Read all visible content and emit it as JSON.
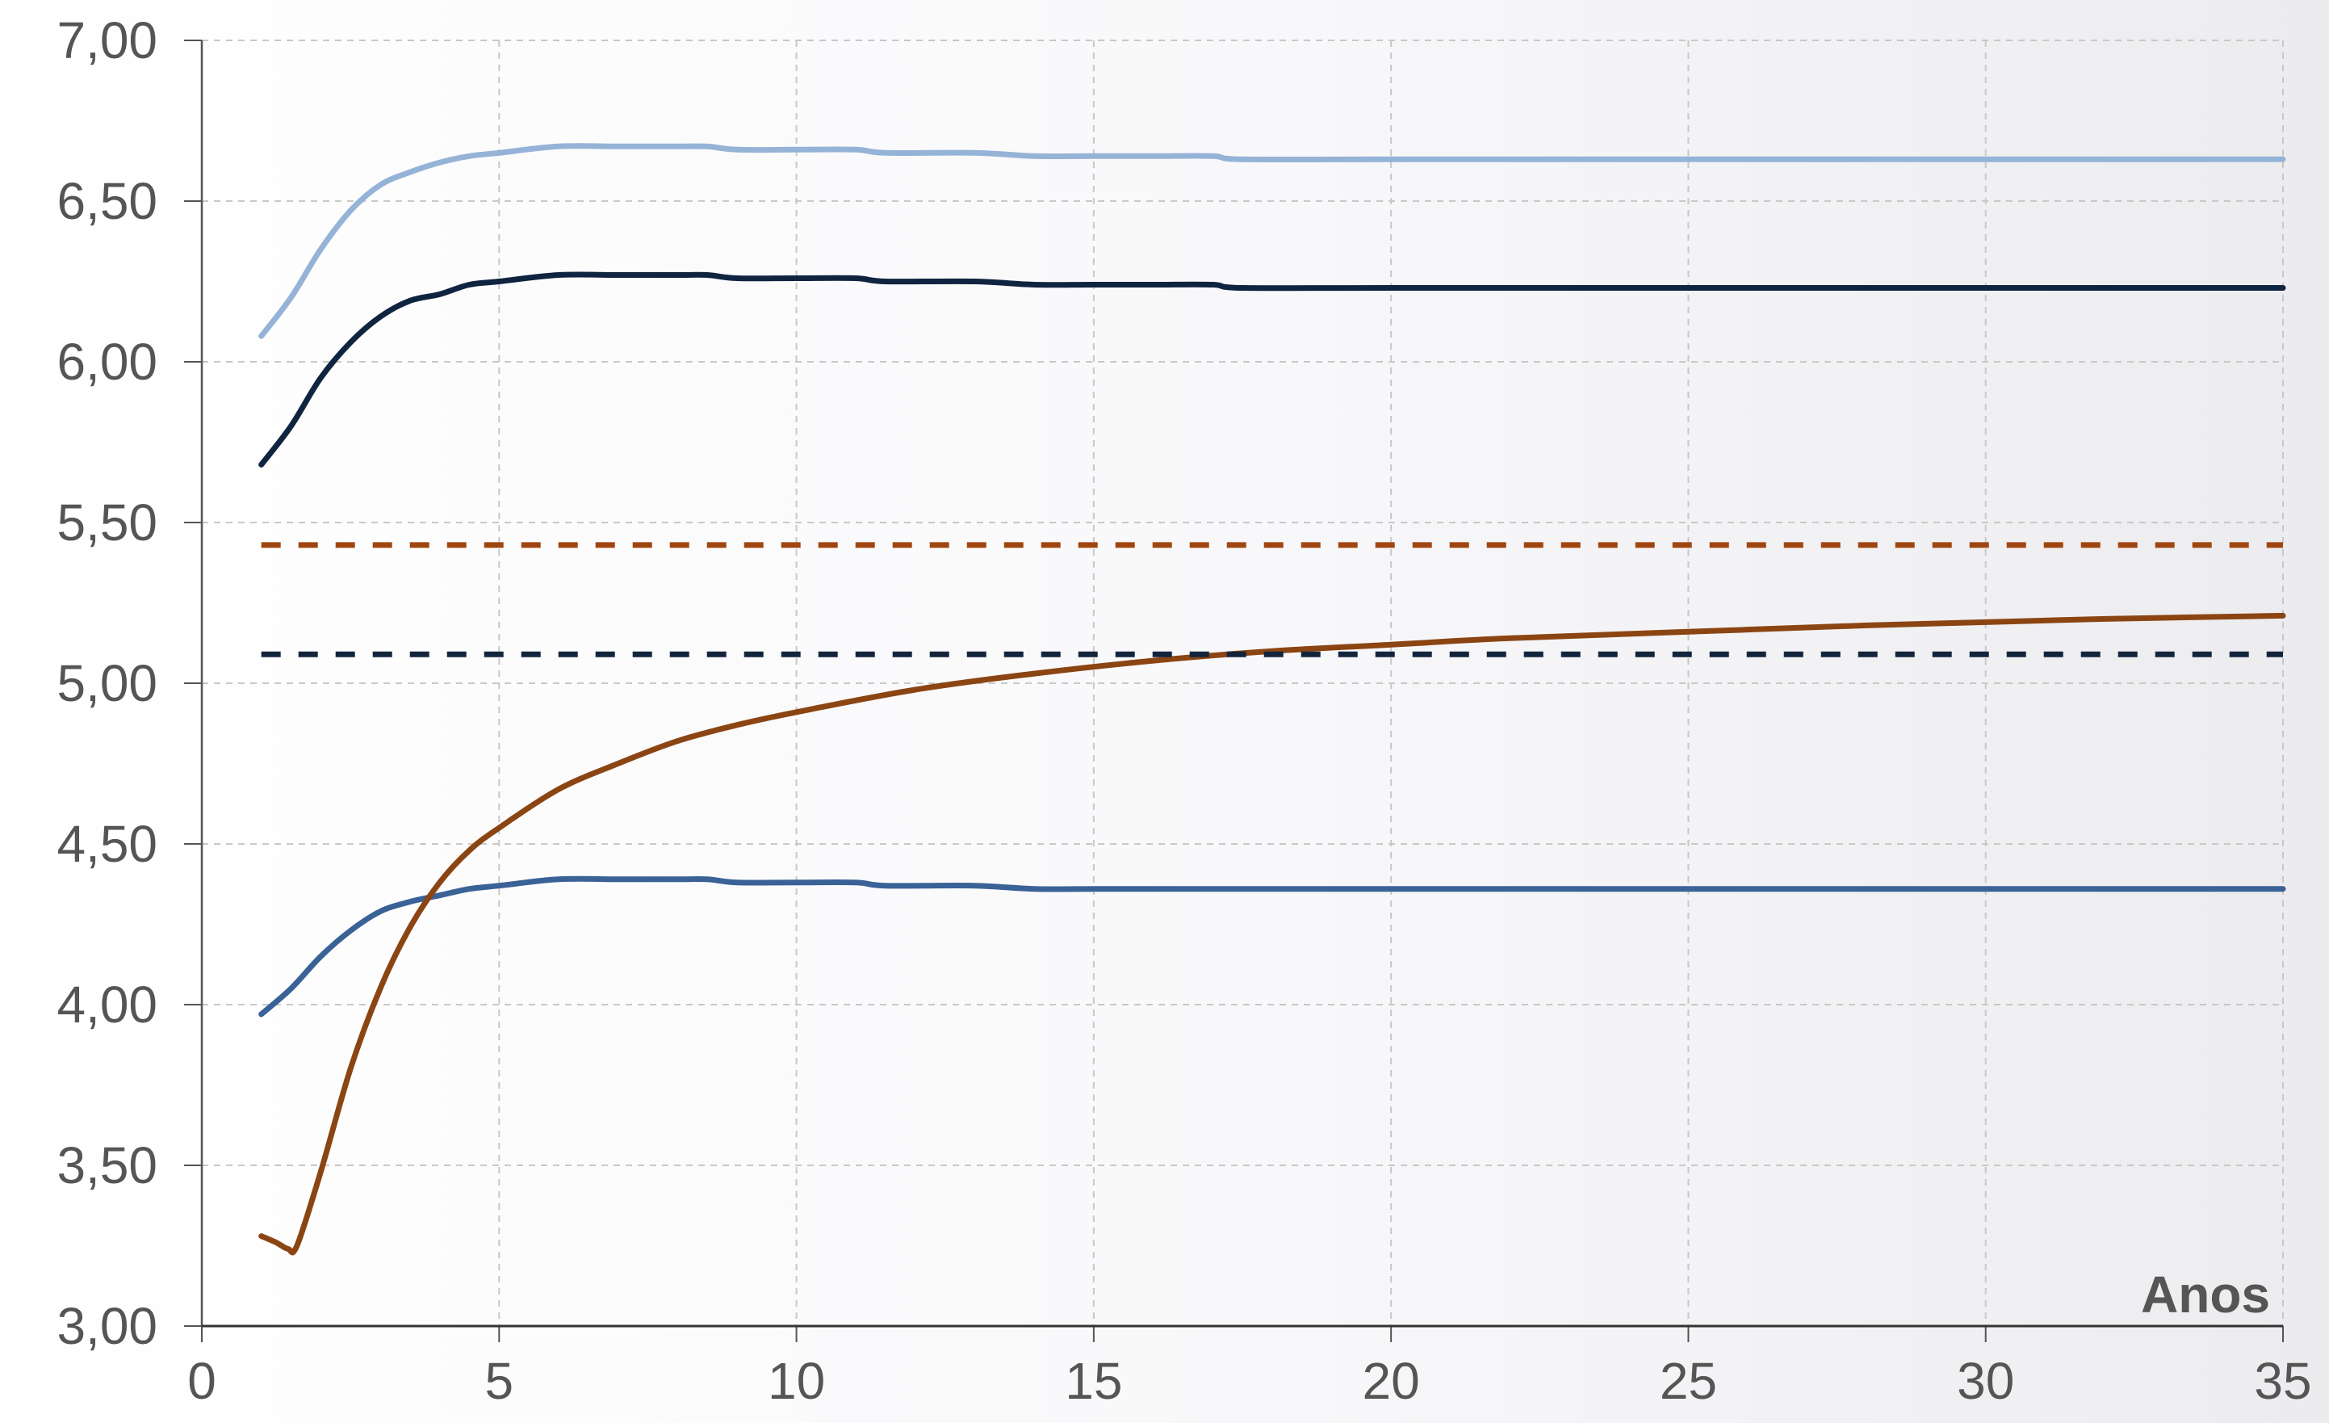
{
  "chart_data": {
    "type": "line",
    "title": "",
    "xlabel": "Anos",
    "ylabel": "",
    "xlim": [
      0,
      35
    ],
    "ylim": [
      3.0,
      7.0
    ],
    "x_ticks": [
      "0",
      "5",
      "10",
      "15",
      "20",
      "25",
      "30",
      "35"
    ],
    "y_ticks": [
      "3,00",
      "3,50",
      "4,00",
      "4,50",
      "5,00",
      "5,50",
      "6,00",
      "6,50",
      "7,00"
    ],
    "grid": true,
    "legend": "none",
    "series": [
      {
        "color": "#95b3d7",
        "style": "solid",
        "points": [
          [
            1,
            6.08
          ],
          [
            1.5,
            6.2
          ],
          [
            2,
            6.35
          ],
          [
            2.5,
            6.47
          ],
          [
            3,
            6.55
          ],
          [
            3.5,
            6.59
          ],
          [
            4,
            6.62
          ],
          [
            4.5,
            6.64
          ],
          [
            5,
            6.65
          ],
          [
            6,
            6.67
          ],
          [
            7,
            6.67
          ],
          [
            8,
            6.67
          ],
          [
            8.5,
            6.67
          ],
          [
            9,
            6.66
          ],
          [
            10,
            6.66
          ],
          [
            11,
            6.66
          ],
          [
            11.5,
            6.65
          ],
          [
            13,
            6.65
          ],
          [
            14,
            6.64
          ],
          [
            15,
            6.64
          ],
          [
            16,
            6.64
          ],
          [
            17,
            6.64
          ],
          [
            17.5,
            6.63
          ],
          [
            20,
            6.63
          ],
          [
            25,
            6.63
          ],
          [
            30,
            6.63
          ],
          [
            35,
            6.63
          ]
        ]
      },
      {
        "color": "#0f2440",
        "style": "solid",
        "points": [
          [
            1,
            5.68
          ],
          [
            1.5,
            5.8
          ],
          [
            2,
            5.95
          ],
          [
            2.5,
            6.06
          ],
          [
            3,
            6.14
          ],
          [
            3.5,
            6.19
          ],
          [
            4,
            6.21
          ],
          [
            4.5,
            6.24
          ],
          [
            5,
            6.25
          ],
          [
            6,
            6.27
          ],
          [
            7,
            6.27
          ],
          [
            8,
            6.27
          ],
          [
            8.5,
            6.27
          ],
          [
            9,
            6.26
          ],
          [
            10,
            6.26
          ],
          [
            11,
            6.26
          ],
          [
            11.5,
            6.25
          ],
          [
            13,
            6.25
          ],
          [
            14,
            6.24
          ],
          [
            15,
            6.24
          ],
          [
            16,
            6.24
          ],
          [
            17,
            6.24
          ],
          [
            17.5,
            6.23
          ],
          [
            20,
            6.23
          ],
          [
            25,
            6.23
          ],
          [
            30,
            6.23
          ],
          [
            35,
            6.23
          ]
        ]
      },
      {
        "color": "#3a6297",
        "style": "solid",
        "points": [
          [
            1,
            3.97
          ],
          [
            1.5,
            4.05
          ],
          [
            2,
            4.15
          ],
          [
            2.5,
            4.23
          ],
          [
            3,
            4.29
          ],
          [
            3.5,
            4.32
          ],
          [
            4,
            4.34
          ],
          [
            4.5,
            4.36
          ],
          [
            5,
            4.37
          ],
          [
            6,
            4.39
          ],
          [
            7,
            4.39
          ],
          [
            8,
            4.39
          ],
          [
            8.5,
            4.39
          ],
          [
            9,
            4.38
          ],
          [
            10,
            4.38
          ],
          [
            11,
            4.38
          ],
          [
            11.5,
            4.37
          ],
          [
            13,
            4.37
          ],
          [
            14,
            4.36
          ],
          [
            15,
            4.36
          ],
          [
            16,
            4.36
          ],
          [
            17,
            4.36
          ],
          [
            17.5,
            4.36
          ],
          [
            20,
            4.36
          ],
          [
            25,
            4.36
          ],
          [
            30,
            4.36
          ],
          [
            35,
            4.36
          ]
        ]
      },
      {
        "color": "#8b4513",
        "style": "solid",
        "points": [
          [
            1,
            3.28
          ],
          [
            1.25,
            3.26
          ],
          [
            1.45,
            3.24
          ],
          [
            1.6,
            3.25
          ],
          [
            2,
            3.48
          ],
          [
            2.5,
            3.8
          ],
          [
            3,
            4.05
          ],
          [
            3.5,
            4.24
          ],
          [
            4,
            4.38
          ],
          [
            4.5,
            4.48
          ],
          [
            5,
            4.55
          ],
          [
            6,
            4.67
          ],
          [
            7,
            4.75
          ],
          [
            8,
            4.82
          ],
          [
            9,
            4.87
          ],
          [
            10,
            4.91
          ],
          [
            12,
            4.98
          ],
          [
            14,
            5.03
          ],
          [
            16,
            5.07
          ],
          [
            18,
            5.1
          ],
          [
            20,
            5.12
          ],
          [
            22,
            5.14
          ],
          [
            25,
            5.16
          ],
          [
            28,
            5.18
          ],
          [
            30,
            5.19
          ],
          [
            32,
            5.2
          ],
          [
            35,
            5.21
          ]
        ]
      },
      {
        "color": "#a0450f",
        "style": "dashed",
        "points": [
          [
            1,
            5.43
          ],
          [
            35,
            5.43
          ]
        ]
      },
      {
        "color": "#13253d",
        "style": "dashed",
        "points": [
          [
            1,
            5.09
          ],
          [
            35,
            5.09
          ]
        ]
      }
    ]
  }
}
